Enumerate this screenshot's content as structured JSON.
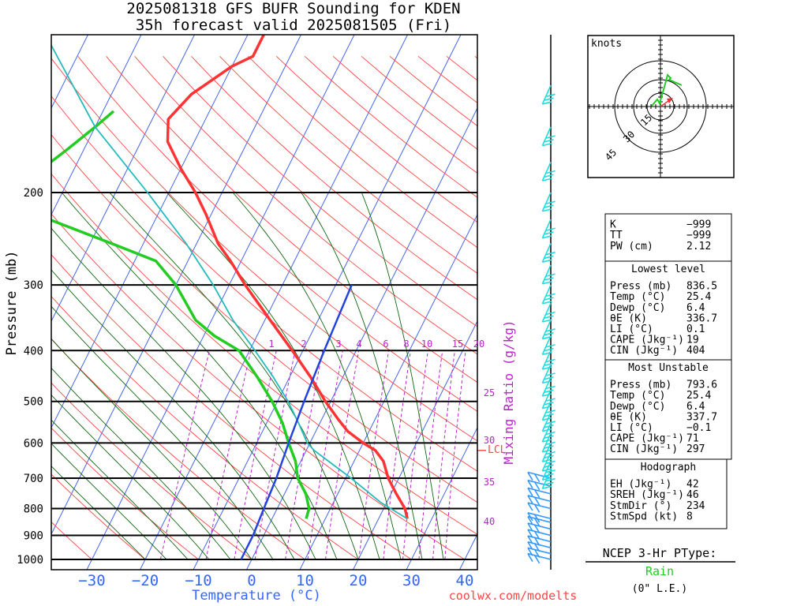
{
  "header": {
    "title": "2025081318 GFS BUFR Sounding for KDEN",
    "subtitle": "35h forecast valid 2025081505 (Fri)"
  },
  "axes": {
    "ylabel": "Pressure (mb)",
    "xlabel": "Temperature (°C)",
    "mixing_label": "Mixing Ratio (g/kg)",
    "lcl_label": "LCL",
    "footer_url": "coolwx.com/modelts"
  },
  "chart_data": {
    "type": "line",
    "skew": "skew-T log-p",
    "x_ticks": [
      "−30",
      "−20",
      "−10",
      "0",
      "10",
      "20",
      "30",
      "40"
    ],
    "x_tick_values": [
      -30,
      -20,
      -10,
      0,
      10,
      20,
      30,
      40
    ],
    "xlim": [
      -38,
      42
    ],
    "y_ticks": [
      200,
      300,
      400,
      500,
      600,
      700,
      800,
      900,
      1000
    ],
    "ylim": [
      1000,
      100
    ],
    "mixing_ratio_top_labels": [
      "1",
      "2",
      "3",
      "4",
      "6",
      "8",
      "10",
      "15",
      "20"
    ],
    "mixing_ratio_right_labels": [
      "25",
      "30",
      "35",
      "40"
    ],
    "lcl_pressure": 620,
    "series": [
      {
        "name": "Temperature",
        "color": "#ff3333",
        "points": [
          [
            836.5,
            25.4
          ],
          [
            800,
            24
          ],
          [
            750,
            21
          ],
          [
            700,
            18
          ],
          [
            650,
            15.5
          ],
          [
            620,
            13
          ],
          [
            600,
            10
          ],
          [
            570,
            6
          ],
          [
            540,
            3
          ],
          [
            500,
            -1
          ],
          [
            450,
            -6
          ],
          [
            400,
            -12
          ],
          [
            350,
            -19
          ],
          [
            300,
            -27
          ],
          [
            270,
            -32
          ],
          [
            250,
            -36
          ],
          [
            220,
            -41
          ],
          [
            200,
            -45
          ],
          [
            180,
            -50
          ],
          [
            160,
            -55
          ],
          [
            145,
            -57
          ],
          [
            130,
            -55
          ],
          [
            115,
            -50
          ],
          [
            110,
            -47
          ],
          [
            100,
            -47
          ]
        ]
      },
      {
        "name": "Dewpoint",
        "color": "#22cc22",
        "points": [
          [
            836.5,
            6.4
          ],
          [
            800,
            6
          ],
          [
            750,
            4
          ],
          [
            700,
            1
          ],
          [
            650,
            -1
          ],
          [
            600,
            -4
          ],
          [
            550,
            -7
          ],
          [
            500,
            -11
          ],
          [
            450,
            -16
          ],
          [
            400,
            -22
          ],
          [
            375,
            -28
          ],
          [
            350,
            -33
          ],
          [
            300,
            -40
          ],
          [
            270,
            -46
          ],
          [
            250,
            -56
          ],
          [
            225,
            -70
          ],
          [
            210,
            -72
          ],
          [
            190,
            -74
          ],
          [
            180,
            -76
          ],
          [
            165,
            -73
          ],
          [
            150,
            -70
          ],
          [
            140,
            -68
          ]
        ]
      },
      {
        "name": "Parcel",
        "color": "#22bbbb",
        "points": [
          [
            836.5,
            25.4
          ],
          [
            780,
            19
          ],
          [
            700,
            11
          ],
          [
            640,
            4
          ],
          [
            620,
            1.5
          ],
          [
            600,
            -0.5
          ],
          [
            550,
            -4
          ],
          [
            500,
            -8
          ],
          [
            450,
            -13
          ],
          [
            400,
            -19
          ],
          [
            350,
            -26
          ],
          [
            300,
            -33
          ],
          [
            250,
            -42
          ],
          [
            200,
            -54
          ],
          [
            150,
            -70
          ],
          [
            100,
            -88
          ]
        ]
      },
      {
        "name": "Virtual",
        "color": "#2244dd",
        "points": [
          [
            1000,
            -2
          ],
          [
            900,
            -2
          ],
          [
            800,
            -2.5
          ],
          [
            700,
            -3
          ],
          [
            600,
            -4
          ],
          [
            500,
            -5
          ],
          [
            400,
            -6
          ],
          [
            300,
            -7
          ]
        ]
      }
    ]
  },
  "hodograph": {
    "units_label": "knots",
    "ring_labels": [
      "15",
      "30",
      "45"
    ],
    "trace_color": "#22cc22",
    "storm_motion_color": "#ee3333"
  },
  "wind_barbs": {
    "pressures": [
      1000,
      975,
      950,
      925,
      900,
      875,
      850,
      836,
      800,
      775,
      750,
      725,
      700,
      675,
      650,
      625,
      600,
      575,
      550,
      525,
      500,
      475,
      450,
      425,
      400,
      375,
      350,
      325,
      300,
      275,
      250,
      225,
      200,
      175,
      150,
      125,
      100
    ],
    "low_color": "#3399ff",
    "high_color": "#22dddd"
  },
  "indices": {
    "rows": [
      {
        "label": "K",
        "value": "−999"
      },
      {
        "label": "TT",
        "value": "−999"
      },
      {
        "label": "PW (cm)",
        "value": "2.12"
      }
    ],
    "lowest_title": "Lowest level",
    "lowest": [
      {
        "label": "Press (mb)",
        "value": "836.5"
      },
      {
        "label": "Temp (°C)",
        "value": "25.4"
      },
      {
        "label": "Dewp (°C)",
        "value": "6.4"
      },
      {
        "label": "θE (K)",
        "value": "336.7"
      },
      {
        "label": "LI (°C)",
        "value": "0.1"
      },
      {
        "label": "CAPE (Jkg⁻¹)",
        "value": "19"
      },
      {
        "label": "CIN (Jkg⁻¹)",
        "value": "404"
      }
    ],
    "unstable_title": "Most Unstable",
    "unstable": [
      {
        "label": "Press (mb)",
        "value": "793.6"
      },
      {
        "label": "Temp (°C)",
        "value": "25.4"
      },
      {
        "label": "Dewp (°C)",
        "value": "6.4"
      },
      {
        "label": "θE (K)",
        "value": "337.7"
      },
      {
        "label": "LI (°C)",
        "value": "−0.1"
      },
      {
        "label": "CAPE (Jkg⁻¹)",
        "value": "71"
      },
      {
        "label": "CIN (Jkg⁻¹)",
        "value": "297"
      }
    ],
    "hodo_title": "Hodograph",
    "hodo": [
      {
        "label": "EH (Jkg⁻¹)",
        "value": "42"
      },
      {
        "label": "SREH (Jkg⁻¹)",
        "value": "46"
      },
      {
        "label": "StmDir (°)",
        "value": "234"
      },
      {
        "label": "StmSpd (kt)",
        "value": "8"
      }
    ]
  },
  "ptype": {
    "title": "NCEP 3-Hr PType:",
    "value": "Rain",
    "value_color": "#22cc22",
    "accum": "(0\" L.E.)"
  }
}
